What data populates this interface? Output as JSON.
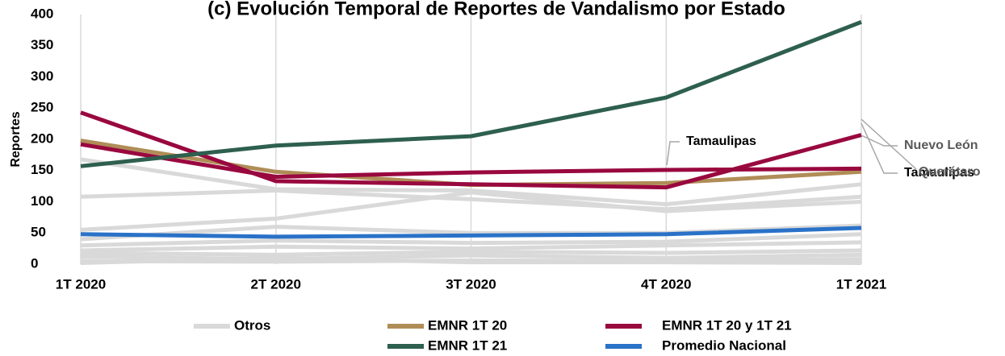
{
  "chart_data": {
    "type": "line",
    "title": "(c) Evolución Temporal de Reportes de Vandalismo por Estado",
    "y_label": "Reportes",
    "categories": [
      "1T 2020",
      "2T 2020",
      "3T 2020",
      "4T 2020",
      "1T 2021"
    ],
    "ylim": [
      0,
      400
    ],
    "yticks": [
      0,
      50,
      100,
      150,
      200,
      250,
      300,
      350,
      400
    ],
    "grid": "x",
    "series": [
      {
        "name": "Otros",
        "color": "#d9d9d9",
        "values": [
          168,
          120,
          118,
          96,
          128
        ]
      },
      {
        "color": "#d9d9d9",
        "values": [
          108,
          118,
          104,
          88,
          108
        ]
      },
      {
        "color": "#d9d9d9",
        "values": [
          55,
          73,
          115,
          85,
          100
        ]
      },
      {
        "color": "#d9d9d9",
        "values": [
          40,
          60,
          50,
          50,
          62
        ]
      },
      {
        "color": "#d9d9d9",
        "values": [
          30,
          38,
          34,
          36,
          48
        ]
      },
      {
        "color": "#d9d9d9",
        "values": [
          22,
          28,
          25,
          30,
          35
        ]
      },
      {
        "color": "#d9d9d9",
        "values": [
          18,
          15,
          20,
          18,
          22
        ]
      },
      {
        "color": "#d9d9d9",
        "values": [
          12,
          8,
          14,
          10,
          15
        ]
      },
      {
        "color": "#d9d9d9",
        "values": [
          5,
          4,
          6,
          5,
          8
        ]
      },
      {
        "color": "#d9d9d9",
        "values": [
          2,
          10,
          3,
          3,
          2
        ]
      },
      {
        "name": "EMNR 1T 20",
        "color": "#b08d57",
        "values": [
          198,
          148,
          127,
          130,
          148
        ]
      },
      {
        "name": "EMNR 1T 20 y 1T 21",
        "color": "#99083f",
        "values": [
          243,
          133,
          128,
          123,
          207
        ]
      },
      {
        "color": "#99083f",
        "values": [
          192,
          140,
          147,
          151,
          153
        ]
      },
      {
        "name": "EMNR 1T 21",
        "color": "#2e5f4f",
        "values": [
          157,
          190,
          205,
          267,
          388
        ]
      },
      {
        "name": "Promedio Nacional",
        "color": "#2a72c8",
        "values": [
          48,
          44,
          46,
          48,
          58
        ]
      }
    ],
    "annotations": [
      {
        "text": "Nuevo León",
        "color": "#595959"
      },
      {
        "text": "Tamaulipas",
        "color": "#000000"
      },
      {
        "text": "Querétaro",
        "color": "#595959"
      },
      {
        "text": "Tamaulipas",
        "color": "#000000"
      }
    ]
  }
}
